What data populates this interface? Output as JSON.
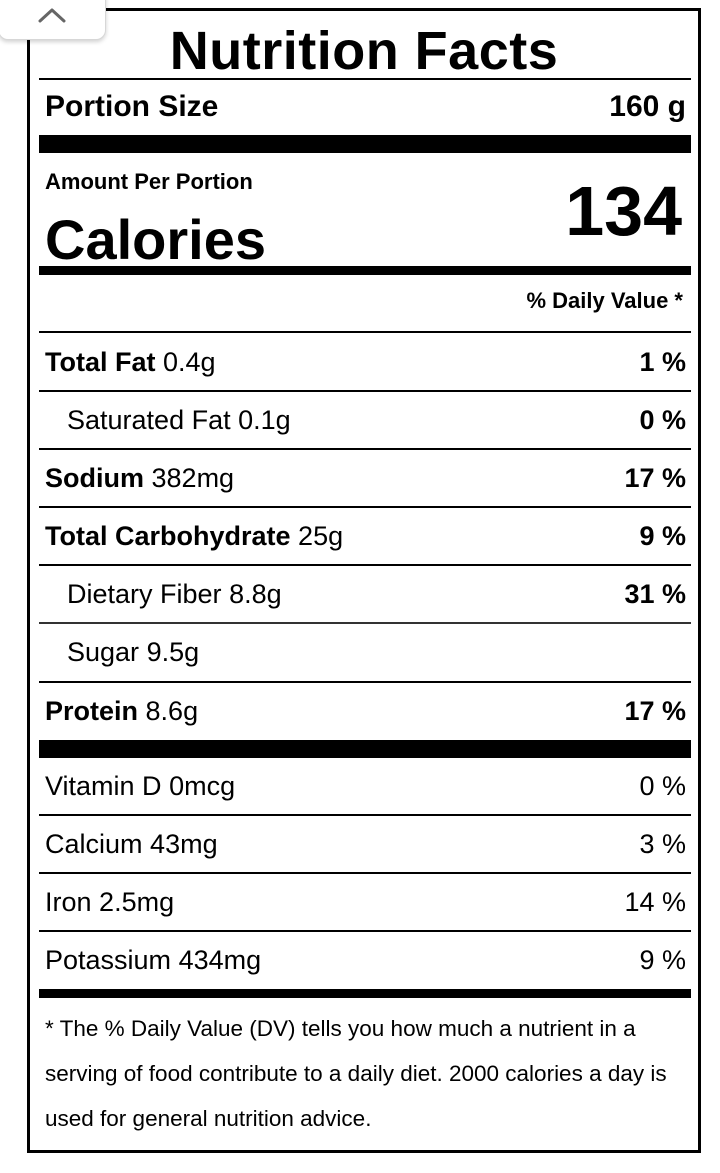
{
  "title": "Nutrition Facts",
  "portion": {
    "label": "Portion Size",
    "value": "160 g"
  },
  "amount_per_portion": "Amount Per Portion",
  "calories": {
    "label": "Calories",
    "value": "134"
  },
  "dv_header": "% Daily Value *",
  "nutrients": [
    {
      "name": "Total Fat",
      "amount": "0.4g",
      "dv": "1 %"
    },
    {
      "name": "Saturated Fat",
      "amount": "0.1g",
      "dv": "0 %"
    },
    {
      "name": "Sodium",
      "amount": "382mg",
      "dv": "17 %"
    },
    {
      "name": "Total Carbohydrate",
      "amount": "25g",
      "dv": "9 %"
    },
    {
      "name": "Dietary Fiber",
      "amount": "8.8g",
      "dv": "31 %"
    },
    {
      "name": "Sugar",
      "amount": "9.5g",
      "dv": ""
    },
    {
      "name": "Protein",
      "amount": "8.6g",
      "dv": "17 %"
    }
  ],
  "vitamins": [
    {
      "name": "Vitamin D",
      "amount": "0mcg",
      "dv": "0 %"
    },
    {
      "name": "Calcium",
      "amount": "43mg",
      "dv": "3 %"
    },
    {
      "name": "Iron",
      "amount": "2.5mg",
      "dv": "14 %"
    },
    {
      "name": "Potassium",
      "amount": "434mg",
      "dv": "9 %"
    }
  ],
  "footnote": "* The % Daily Value (DV) tells you how much a nutrient in a serving of food contribute to a daily diet. 2000 calories a day is used for general nutrition advice.",
  "icons": {
    "collapse": "chevron-up-icon"
  }
}
